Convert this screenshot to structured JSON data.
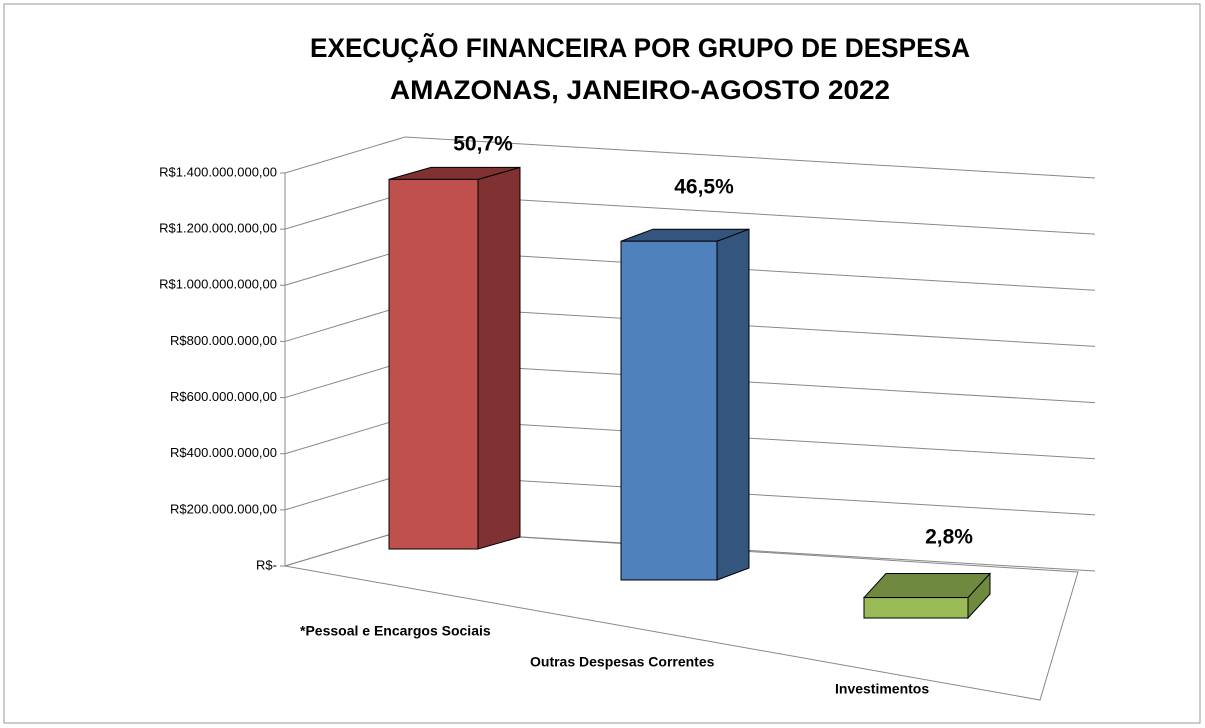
{
  "chart_data": {
    "type": "bar3d",
    "title": "EXECUÇÃO FINANCEIRA POR GRUPO DE DESPESA",
    "subtitle": "AMAZONAS, JANEIRO-AGOSTO 2022",
    "categories": [
      "*Pessoal e Encargos Sociais",
      "Outras Despesas Correntes",
      "Investimentos"
    ],
    "values": [
      1320000000,
      1210000000,
      73000000
    ],
    "share_labels": [
      "50,7%",
      "46,5%",
      "2,8%"
    ],
    "colors": [
      "#c0504d",
      "#4f81bd",
      "#9bbb59"
    ],
    "side_colors": [
      "#7f3231",
      "#34557d",
      "#6f8a3e"
    ],
    "ylim": [
      0,
      1400000000
    ],
    "yticks": [
      {
        "value": 0,
        "label": "R$-"
      },
      {
        "value": 200000000,
        "label": "R$200.000.000,00"
      },
      {
        "value": 400000000,
        "label": "R$400.000.000,00"
      },
      {
        "value": 600000000,
        "label": "R$600.000.000,00"
      },
      {
        "value": 800000000,
        "label": "R$800.000.000,00"
      },
      {
        "value": 1000000000,
        "label": "R$1.000.000.000,00"
      },
      {
        "value": 1200000000,
        "label": "R$1.200.000.000,00"
      },
      {
        "value": 1400000000,
        "label": "R$1.400.000.000,00"
      }
    ],
    "grid": true
  }
}
